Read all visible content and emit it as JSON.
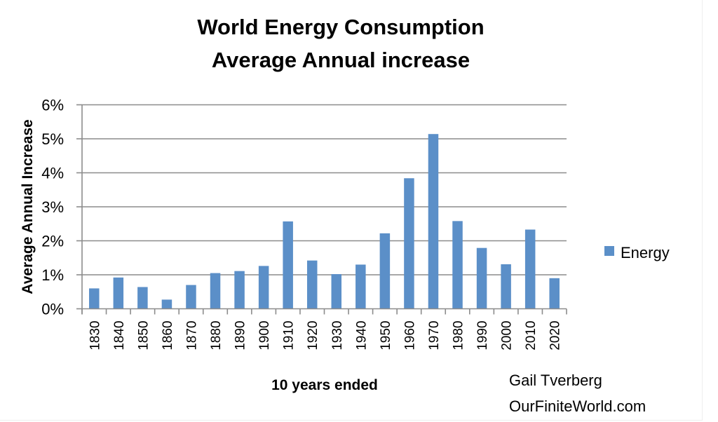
{
  "chart_data": {
    "type": "bar",
    "title": "World Energy Consumption",
    "subtitle": "Average Annual increase",
    "xlabel": "10 years ended",
    "ylabel": "Average Annual Increase",
    "ylim": [
      0,
      6
    ],
    "yticks": [
      0,
      1,
      2,
      3,
      4,
      5,
      6
    ],
    "ytick_labels": [
      "0%",
      "1%",
      "2%",
      "3%",
      "4%",
      "5%",
      "6%"
    ],
    "grid": true,
    "legend_position": "right",
    "categories": [
      "1830",
      "1840",
      "1850",
      "1860",
      "1870",
      "1880",
      "1890",
      "1900",
      "1910",
      "1920",
      "1930",
      "1940",
      "1950",
      "1960",
      "1970",
      "1980",
      "1990",
      "2000",
      "2010",
      "2020"
    ],
    "series": [
      {
        "name": "Energy",
        "color": "#5b8fc8",
        "values": [
          0.6,
          0.92,
          0.64,
          0.27,
          0.7,
          1.05,
          1.11,
          1.26,
          2.57,
          1.42,
          1.02,
          1.3,
          2.22,
          3.84,
          5.14,
          2.58,
          1.79,
          1.31,
          2.33,
          0.9
        ]
      }
    ],
    "annotations": [
      "Gail Tverberg",
      "OurFiniteWorld.com"
    ]
  },
  "colors": {
    "bar": "#5b8fc8",
    "grid": "#8c8c8c",
    "text": "#000000"
  }
}
